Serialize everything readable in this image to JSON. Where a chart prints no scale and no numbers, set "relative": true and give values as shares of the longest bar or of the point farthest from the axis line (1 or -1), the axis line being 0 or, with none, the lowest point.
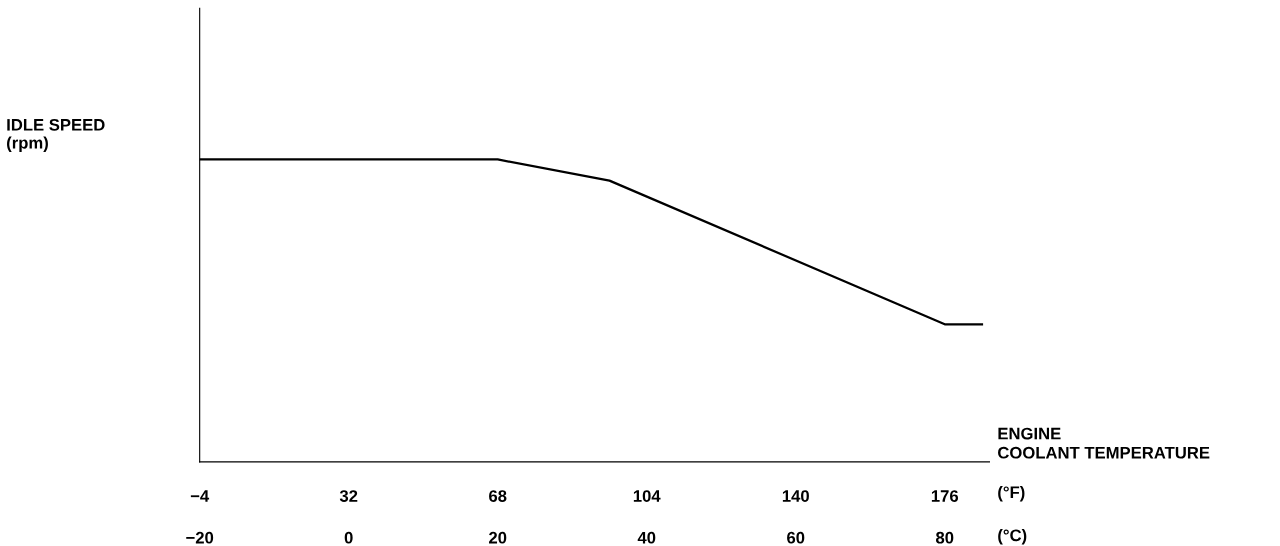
{
  "chart_data": {
    "type": "line",
    "relative": true,
    "xlabel": "ENGINE\nCOOLANT TEMPERATURE",
    "ylabel": "IDLE SPEED\n(rpm)",
    "x2label": "(°F)",
    "annotations": [
      "(°C)"
    ],
    "xlim": [
      -20,
      86
    ],
    "xticks": [
      {
        "value": -20,
        "label": "−20"
      },
      0,
      20,
      40,
      60,
      80
    ],
    "x2lim": [
      -4,
      186.8
    ],
    "x2ticks": [
      {
        "value": -4,
        "label": "−4"
      },
      32,
      68,
      104,
      140,
      176
    ],
    "tick_labels": "x",
    "grid": false,
    "legend": false,
    "marker": "none",
    "line_style": "solid",
    "series": [
      {
        "color": "#000000",
        "x": [
          -20,
          20,
          35,
          80,
          85
        ],
        "values": [
          1,
          1,
          0.93,
          0.455,
          0.455
        ]
      }
    ]
  }
}
